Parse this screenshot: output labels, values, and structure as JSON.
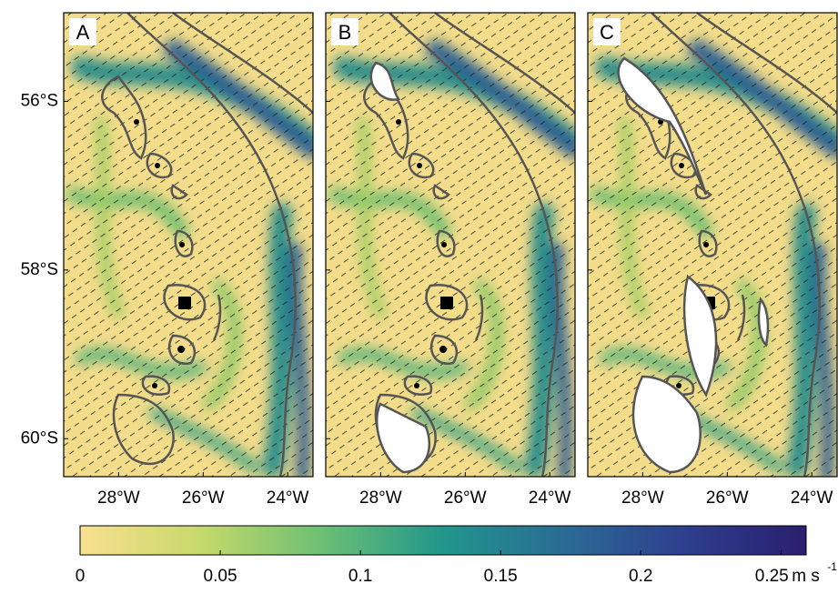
{
  "maps": {
    "panels": [
      {
        "label": "A"
      },
      {
        "label": "B"
      },
      {
        "label": "C"
      }
    ],
    "ylim": [
      -60.45,
      -54.95
    ],
    "xlim": [
      -29.3,
      -23.4
    ],
    "yticks": [
      {
        "value": -56,
        "label": "56°S"
      },
      {
        "value": -58,
        "label": "58°S"
      },
      {
        "value": -60,
        "label": "60°S"
      }
    ],
    "xticks": [
      {
        "value": -28,
        "label": "28°W"
      },
      {
        "value": -26,
        "label": "26°W"
      },
      {
        "value": -24,
        "label": "24°W"
      }
    ],
    "colorbar": {
      "lim": [
        0,
        0.259
      ],
      "ticks": [
        0,
        0.05,
        0.1,
        0.15,
        0.2,
        0.25
      ],
      "unit": "m s",
      "unit_exponent": "-1",
      "colors": [
        "#f9e08f",
        "#c6d96b",
        "#6cbf73",
        "#21968b",
        "#2b6b95",
        "#2e3f8e",
        "#2b1e6e"
      ]
    }
  }
}
